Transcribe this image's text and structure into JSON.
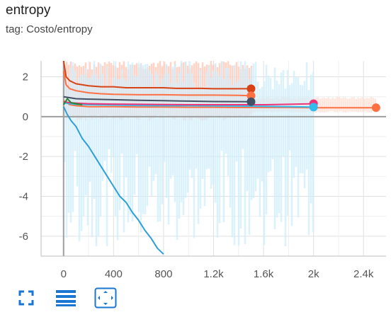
{
  "header": {
    "title": "entropy",
    "subtitle": "tag: Costo/entropy"
  },
  "toolbar": {
    "fullscreen_icon": "fullscreen-icon",
    "list_icon": "list-icon",
    "fit_icon": "fit-domain-icon",
    "accent_color": "#1976d2"
  },
  "chart_data": {
    "type": "line",
    "title": "",
    "xlabel": "",
    "ylabel": "",
    "xlim": [
      -180,
      2580
    ],
    "ylim": [
      -7,
      2.8
    ],
    "x_ticks": [
      0,
      400,
      800,
      1200,
      1600,
      2000,
      2400
    ],
    "x_tick_labels": [
      "0",
      "400",
      "800",
      "1.2k",
      "1.6k",
      "2k",
      "2.4k"
    ],
    "y_ticks": [
      2,
      0,
      -2,
      -4,
      -6
    ],
    "y_tick_labels": [
      "2",
      "0",
      "-2",
      "-4",
      "-6"
    ],
    "grid": true,
    "series": [
      {
        "color": "#d84315",
        "x": [
          0,
          20,
          50,
          100,
          200,
          300,
          400,
          500,
          600,
          700,
          800,
          900,
          1000,
          1100,
          1200,
          1300,
          1400,
          1500
        ],
        "y": [
          2.8,
          2.0,
          1.8,
          1.65,
          1.55,
          1.5,
          1.5,
          1.45,
          1.45,
          1.45,
          1.45,
          1.42,
          1.42,
          1.42,
          1.4,
          1.4,
          1.4,
          1.4
        ]
      },
      {
        "color": "#ff7043",
        "x": [
          0,
          20,
          50,
          100,
          200,
          300,
          400,
          600,
          800,
          1000,
          1200,
          1400,
          1500
        ],
        "y": [
          2.3,
          1.6,
          1.4,
          1.3,
          1.2,
          1.15,
          1.12,
          1.1,
          1.1,
          1.08,
          1.08,
          1.07,
          1.05
        ]
      },
      {
        "color": "#ff7043",
        "x": [
          0,
          50,
          100,
          200,
          400,
          600,
          800,
          1000,
          1200,
          1400,
          1600,
          1800,
          2000,
          2200,
          2400,
          2500
        ],
        "y": [
          0.8,
          0.6,
          0.55,
          0.5,
          0.5,
          0.48,
          0.48,
          0.47,
          0.47,
          0.46,
          0.46,
          0.46,
          0.45,
          0.45,
          0.45,
          0.45
        ]
      },
      {
        "color": "#425066",
        "x": [
          0,
          50,
          100,
          200,
          400,
          600,
          800,
          1000,
          1200,
          1500
        ],
        "y": [
          1.0,
          0.95,
          0.9,
          0.88,
          0.85,
          0.82,
          0.8,
          0.78,
          0.76,
          0.75
        ]
      },
      {
        "color": "#33bbee",
        "x": [
          0,
          50,
          100,
          200,
          400,
          600,
          800,
          1000,
          1200,
          1400,
          1600,
          1800,
          2000
        ],
        "y": [
          0.7,
          0.65,
          0.62,
          0.6,
          0.58,
          0.56,
          0.55,
          0.55,
          0.54,
          0.53,
          0.52,
          0.5,
          0.48
        ]
      },
      {
        "color": "#ee3377",
        "x": [
          0,
          50,
          100,
          200,
          400,
          600,
          800,
          1000,
          1200,
          1400,
          1600,
          1800,
          2000
        ],
        "y": [
          0.75,
          0.7,
          0.68,
          0.65,
          0.63,
          0.62,
          0.61,
          0.6,
          0.6,
          0.6,
          0.6,
          0.62,
          0.65
        ]
      },
      {
        "color": "#228833",
        "x": [
          0,
          30,
          60,
          100,
          150
        ],
        "y": [
          0.6,
          0.9,
          0.7,
          0.65,
          0.6
        ]
      },
      {
        "color": "#2e9fd6",
        "x": [
          0,
          30,
          60,
          100,
          150,
          200,
          250,
          300,
          350,
          400,
          450,
          500,
          550,
          600,
          650,
          700,
          750,
          800
        ],
        "y": [
          0.5,
          0.1,
          -0.2,
          -0.5,
          -1.1,
          -1.5,
          -2.0,
          -2.5,
          -3.0,
          -3.5,
          -4.0,
          -4.3,
          -4.8,
          -5.2,
          -5.7,
          -6.1,
          -6.6,
          -6.9
        ]
      }
    ],
    "end_markers": [
      {
        "color": "#d84315",
        "x": 1500,
        "y": 1.4
      },
      {
        "color": "#ff7043",
        "x": 1500,
        "y": 1.05
      },
      {
        "color": "#425066",
        "x": 1500,
        "y": 0.75
      },
      {
        "color": "#ee3377",
        "x": 2000,
        "y": 0.65
      },
      {
        "color": "#33bbee",
        "x": 2000,
        "y": 0.48
      },
      {
        "color": "#ff7043",
        "x": 2500,
        "y": 0.45
      }
    ],
    "raw_bands": [
      {
        "color": "#ffccbc",
        "x": [
          0,
          1500
        ],
        "y": [
          -0.2,
          2.8
        ]
      },
      {
        "color": "#ffe0d6",
        "x": [
          1500,
          2500
        ],
        "y": [
          0.2,
          1.0
        ]
      },
      {
        "color": "#cdeefb",
        "x": [
          0,
          2000
        ],
        "y": [
          -7,
          2.8
        ]
      }
    ]
  }
}
